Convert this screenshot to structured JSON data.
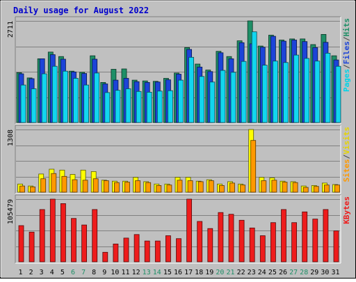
{
  "chart_data": {
    "type": "bar",
    "title": "Daily usage for August 2022",
    "categories": [
      "1",
      "2",
      "3",
      "4",
      "5",
      "6",
      "7",
      "8",
      "9",
      "10",
      "11",
      "12",
      "13",
      "14",
      "15",
      "16",
      "17",
      "18",
      "19",
      "20",
      "21",
      "22",
      "23",
      "24",
      "25",
      "26",
      "27",
      "28",
      "29",
      "30",
      "31"
    ],
    "weekend_days": [
      "6",
      "7",
      "13",
      "14",
      "20",
      "21",
      "27",
      "28"
    ],
    "panels": [
      {
        "id": "hits",
        "max_label": "2711",
        "ylim": [
          0,
          2711
        ],
        "series": [
          {
            "name": "Hits",
            "color": "#1f8f67",
            "values": [
              1330,
              1190,
              1700,
              1880,
              1760,
              1370,
              1340,
              1780,
              1070,
              1420,
              1430,
              1130,
              1110,
              1100,
              1180,
              1320,
              2000,
              1560,
              1400,
              1900,
              1760,
              2180,
              2711,
              2040,
              2330,
              2200,
              2230,
              2230,
              2080,
              2350,
              1780
            ]
          },
          {
            "name": "Pages",
            "color": "#1c44d8",
            "values": [
              1300,
              1170,
              1700,
              1810,
              1690,
              1350,
              1310,
              1690,
              1030,
              1130,
              1180,
              1090,
              1070,
              1080,
              1140,
              1290,
              1950,
              1480,
              1360,
              1860,
              1700,
              2130,
              2100,
              2010,
              2300,
              2170,
              2200,
              2160,
              2000,
              2140,
              1670
            ]
          },
          {
            "name": "Files",
            "color": "#12d6ef",
            "values": [
              1000,
              900,
              1300,
              1500,
              1370,
              1180,
              1000,
              1320,
              800,
              860,
              900,
              830,
              810,
              840,
              850,
              1130,
              1740,
              1230,
              1080,
              1390,
              1340,
              1630,
              2420,
              1530,
              1640,
              1600,
              1800,
              1710,
              1640,
              1850,
              1500
            ]
          }
        ]
      },
      {
        "id": "visits",
        "max_label": "1308",
        "ylim": [
          0,
          1308
        ],
        "series": [
          {
            "name": "Visits",
            "color": "#ffff00",
            "values": [
              170,
              130,
              380,
              480,
              460,
              370,
              460,
              430,
              250,
              230,
              230,
              310,
              220,
              170,
              170,
              310,
              310,
              230,
              260,
              170,
              220,
              170,
              1308,
              310,
              300,
              230,
              220,
              130,
              140,
              190,
              160
            ]
          },
          {
            "name": "Sites",
            "color": "#ff9900",
            "values": [
              130,
              110,
              280,
              390,
              330,
              260,
              250,
              280,
              240,
              200,
              210,
              240,
              200,
              140,
              150,
              250,
              240,
              220,
              240,
              140,
              190,
              150,
              1080,
              240,
              250,
              210,
              200,
              100,
              120,
              150,
              150
            ]
          }
        ]
      },
      {
        "id": "kbytes",
        "max_label": "105479",
        "ylim": [
          0,
          105479
        ],
        "series": [
          {
            "name": "KBytes",
            "color": "#ee1c1c",
            "values": [
              61000,
              50000,
              88000,
              105479,
              98000,
              73000,
              62000,
              88000,
              16000,
              30000,
              40000,
              46000,
              35000,
              35000,
              44000,
              39000,
              106000,
              68000,
              56000,
              83000,
              80000,
              70000,
              57000,
              44000,
              66000,
              88000,
              66000,
              84000,
              72000,
              88000,
              52000
            ]
          }
        ]
      }
    ],
    "legends": {
      "hits": [
        {
          "text": "Pages",
          "color": "#00d4e8"
        },
        {
          "text": "/",
          "color": "#444444"
        },
        {
          "text": "Files",
          "color": "#1c44d8"
        },
        {
          "text": "/",
          "color": "#444444"
        },
        {
          "text": "Hits",
          "color": "#1f8f67"
        }
      ],
      "visits": [
        {
          "text": "Sites",
          "color": "#ff9900"
        },
        {
          "text": "/",
          "color": "#444444"
        },
        {
          "text": "Visits",
          "color": "#e6d400"
        }
      ],
      "kbytes": [
        {
          "text": "KBytes",
          "color": "#ee1c1c"
        }
      ]
    },
    "colors": {
      "background": "#c0c0c0",
      "title": "#0000cc",
      "weekday_label": "#000000",
      "weekend_label": "#1f8f67",
      "grid": "#808080"
    },
    "grid": true
  }
}
